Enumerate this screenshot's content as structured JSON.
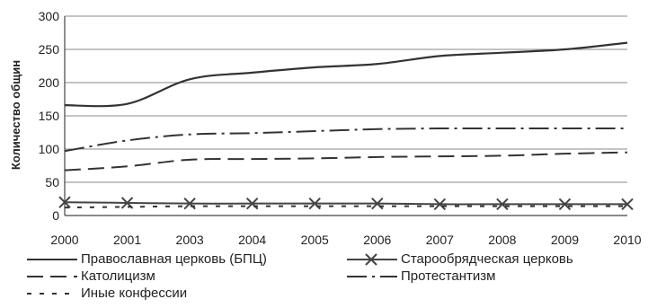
{
  "chart_data": {
    "type": "line",
    "ylabel": "Количество общин",
    "x": [
      "2000",
      "2001",
      "2003",
      "2004",
      "2005",
      "2006",
      "2007",
      "2008",
      "2009",
      "2010"
    ],
    "ylim": [
      0,
      300
    ],
    "yticks": [
      "0",
      "50",
      "100",
      "150",
      "200",
      "250",
      "300"
    ],
    "series": [
      {
        "name": "Православная церковь (БПЦ)",
        "style": "solid",
        "color": "#333333",
        "values": [
          166,
          168,
          205,
          215,
          223,
          228,
          240,
          245,
          250,
          260
        ]
      },
      {
        "name": "Старообрядческая церковь",
        "style": "solid-x",
        "color": "#444444",
        "values": [
          20,
          19,
          18,
          18,
          18,
          18,
          17,
          17,
          17,
          17
        ]
      },
      {
        "name": "Католицизм",
        "style": "dash",
        "color": "#333333",
        "values": [
          68,
          74,
          84,
          85,
          86,
          88,
          89,
          90,
          93,
          95
        ]
      },
      {
        "name": "Протестантизм",
        "style": "dashdot",
        "color": "#333333",
        "values": [
          97,
          113,
          122,
          124,
          127,
          130,
          131,
          131,
          131,
          131
        ]
      },
      {
        "name": "Иные конфессии",
        "style": "dot",
        "color": "#333333",
        "values": [
          12,
          13,
          14,
          14,
          14,
          14,
          14,
          14,
          14,
          14
        ]
      }
    ],
    "grid": "horizontal",
    "legend_position": "bottom"
  }
}
